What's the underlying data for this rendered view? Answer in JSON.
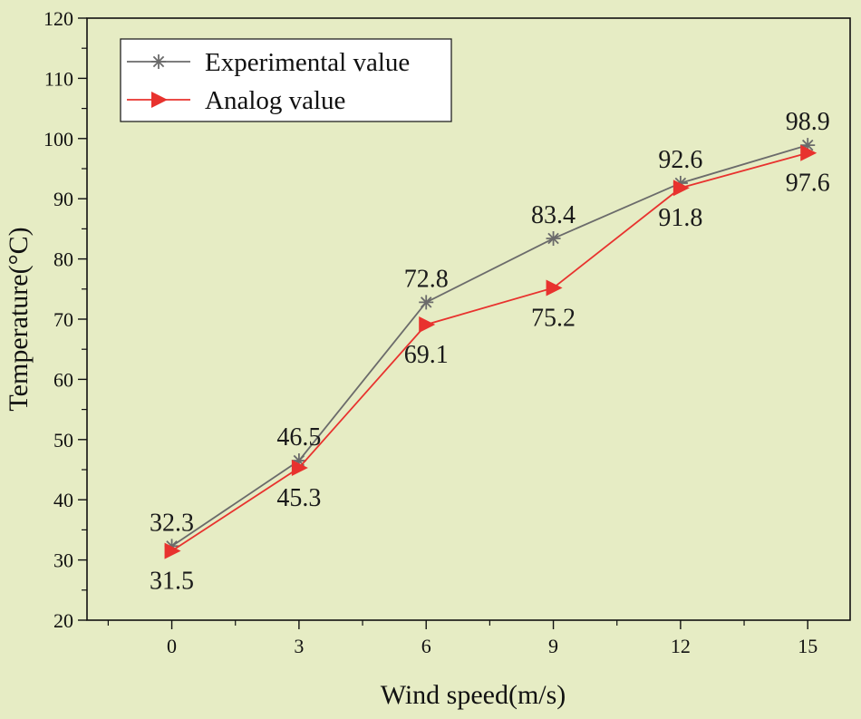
{
  "chart_data": {
    "type": "line",
    "title": "",
    "xlabel": "Wind speed(m/s)",
    "ylabel": "Temperature(°C)",
    "x": [
      0,
      3,
      6,
      9,
      12,
      15
    ],
    "xlim": [
      -2,
      16
    ],
    "ylim": [
      20,
      120
    ],
    "xticks": [
      "0",
      "3",
      "6",
      "9",
      "12",
      "15"
    ],
    "yticks": [
      "20",
      "30",
      "40",
      "50",
      "60",
      "70",
      "80",
      "90",
      "100",
      "110",
      "120"
    ],
    "grid": false,
    "legend_position": "top-left",
    "series": [
      {
        "name": "Experimental value",
        "values": [
          32.3,
          46.5,
          72.8,
          83.4,
          92.6,
          98.9
        ],
        "value_labels": [
          "32.3",
          "46.5",
          "72.8",
          "83.4",
          "92.6",
          "98.9"
        ],
        "color": "#6b6b6b",
        "marker": "asterisk",
        "label_side": "above"
      },
      {
        "name": "Analog value",
        "values": [
          31.5,
          45.3,
          69.1,
          75.2,
          91.8,
          97.6
        ],
        "value_labels": [
          "31.5",
          "45.3",
          "69.1",
          "75.2",
          "91.8",
          "97.6"
        ],
        "color": "#e8322e",
        "marker": "triangle-right",
        "label_side": "below"
      }
    ]
  }
}
